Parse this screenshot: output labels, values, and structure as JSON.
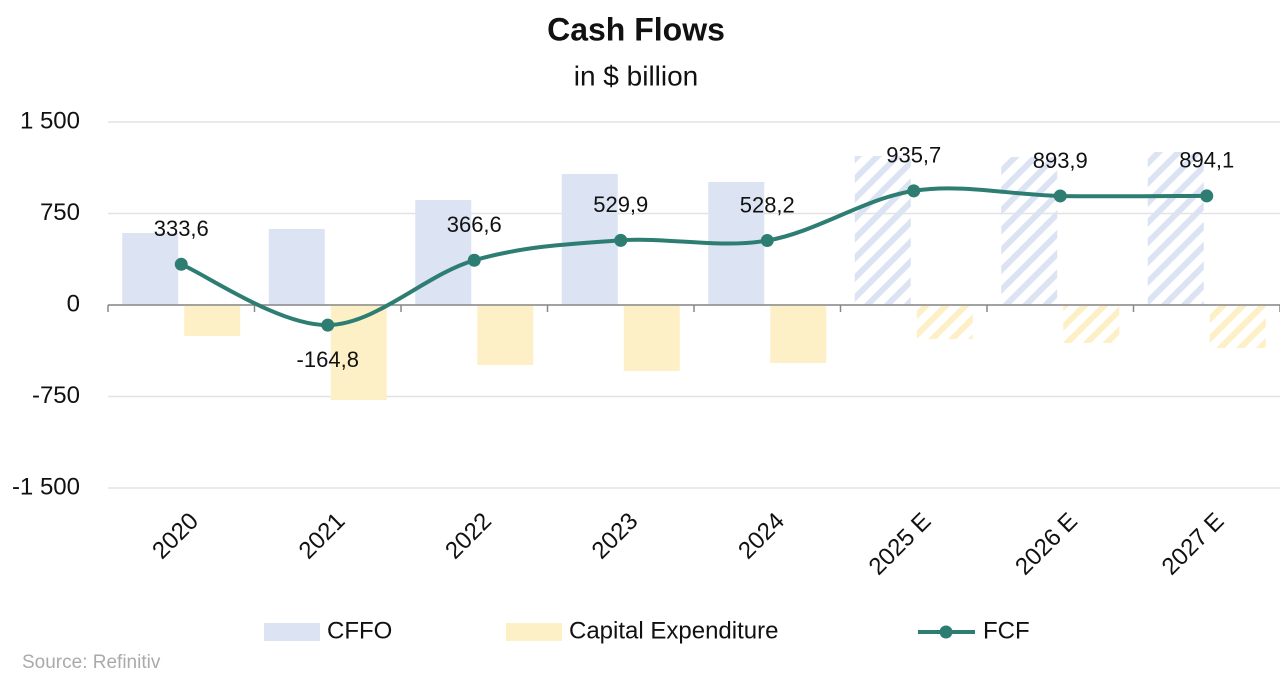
{
  "chart_data": {
    "type": "bar-line",
    "title": "Cash Flows",
    "subtitle": "in $ billion",
    "source": "Source: Refinitiv",
    "categories": [
      "2020",
      "2021",
      "2022",
      "2023",
      "2024",
      "2025 E",
      "2026 E",
      "2027 E"
    ],
    "series": [
      {
        "name": "CFFO",
        "type": "bar",
        "color": "#dce3f2",
        "values": [
          590,
          623,
          861,
          1074,
          1008,
          1221,
          1213,
          1254
        ],
        "hatched": [
          false,
          false,
          false,
          false,
          false,
          true,
          true,
          true
        ]
      },
      {
        "name": "Capital Expenditure",
        "type": "bar",
        "color": "#fdf0c6",
        "values": [
          -254,
          -779,
          -492,
          -541,
          -475,
          -279,
          -311,
          -352
        ],
        "hatched": [
          false,
          false,
          false,
          false,
          false,
          true,
          true,
          true
        ]
      },
      {
        "name": "FCF",
        "type": "line",
        "color": "#2e7d72",
        "values": [
          333.6,
          -164.8,
          366.6,
          529.9,
          528.2,
          935.7,
          893.9,
          894.1
        ],
        "value_labels": [
          "333,6",
          "-164,8",
          "366,6",
          "529,9",
          "528,2",
          "935,7",
          "893,9",
          "894,1"
        ]
      }
    ],
    "ylim": [
      -1500,
      1500
    ],
    "yticks": [
      {
        "value": -1500,
        "label": "-1 500"
      },
      -750,
      0,
      750,
      {
        "value": 1500,
        "label": "1 500"
      }
    ],
    "grid": true
  }
}
